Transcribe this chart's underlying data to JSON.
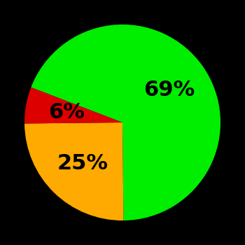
{
  "slices": [
    69,
    25,
    6
  ],
  "colors": [
    "#00ee00",
    "#ffaa00",
    "#dd0000"
  ],
  "labels": [
    "69%",
    "25%",
    "6%"
  ],
  "label_colors": [
    "#000000",
    "#000000",
    "#000000"
  ],
  "background_color": "#000000",
  "startangle": 159,
  "label_fontsize": 22,
  "label_fontweight": "bold",
  "label_radii": [
    0.58,
    0.58,
    0.58
  ]
}
